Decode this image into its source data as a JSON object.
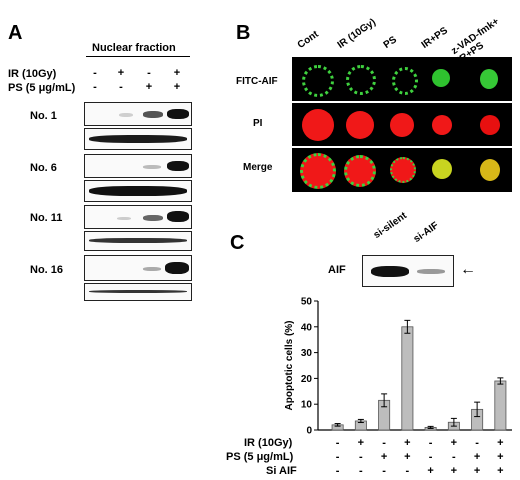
{
  "panel_a": {
    "letter": "A",
    "header": "Nuclear fraction",
    "conditions": [
      {
        "label": "IR (10Gy)",
        "signs": [
          "-",
          "+",
          "-",
          "+"
        ]
      },
      {
        "label": "PS (5 μg/mL)",
        "signs": [
          "-",
          "-",
          "+",
          "+"
        ]
      }
    ],
    "samples": [
      "No. 1",
      "No. 6",
      "No. 11",
      "No. 16"
    ]
  },
  "panel_b": {
    "letter": "B",
    "columns": [
      "Cont",
      "IR (10Gy)",
      "PS",
      "IR+PS",
      "z-VAD-fmk+\nIR+PS"
    ],
    "rows": [
      "FITC-AIF",
      "PI",
      "Merge"
    ]
  },
  "panel_c": {
    "letter": "C",
    "blot_label": "AIF",
    "blot_lanes": [
      "si-silent",
      "si-AIF"
    ],
    "conditions": [
      {
        "label": "IR (10Gy)",
        "signs": [
          "-",
          "+",
          "-",
          "+",
          "-",
          "+",
          "-",
          "+"
        ]
      },
      {
        "label": "PS (5 μg/mL)",
        "signs": [
          "-",
          "-",
          "+",
          "+",
          "-",
          "-",
          "+",
          "+"
        ]
      },
      {
        "label": "Si AIF",
        "signs": [
          "-",
          "-",
          "-",
          "-",
          "+",
          "+",
          "+",
          "+"
        ]
      }
    ]
  },
  "chart_data": {
    "type": "bar",
    "categories": [
      "1",
      "2",
      "3",
      "4",
      "5",
      "6",
      "7",
      "8"
    ],
    "values": [
      2,
      3.5,
      11.5,
      40,
      1,
      3,
      8,
      19
    ],
    "errors": [
      0.5,
      0.6,
      2.5,
      2.5,
      0.4,
      1.5,
      2.8,
      1.2
    ],
    "ylabel": "Apoptotic cells (%)",
    "ylim": [
      0,
      50
    ],
    "yticks": [
      0,
      10,
      20,
      30,
      40,
      50
    ],
    "bar_color": "#bdbdbd"
  }
}
